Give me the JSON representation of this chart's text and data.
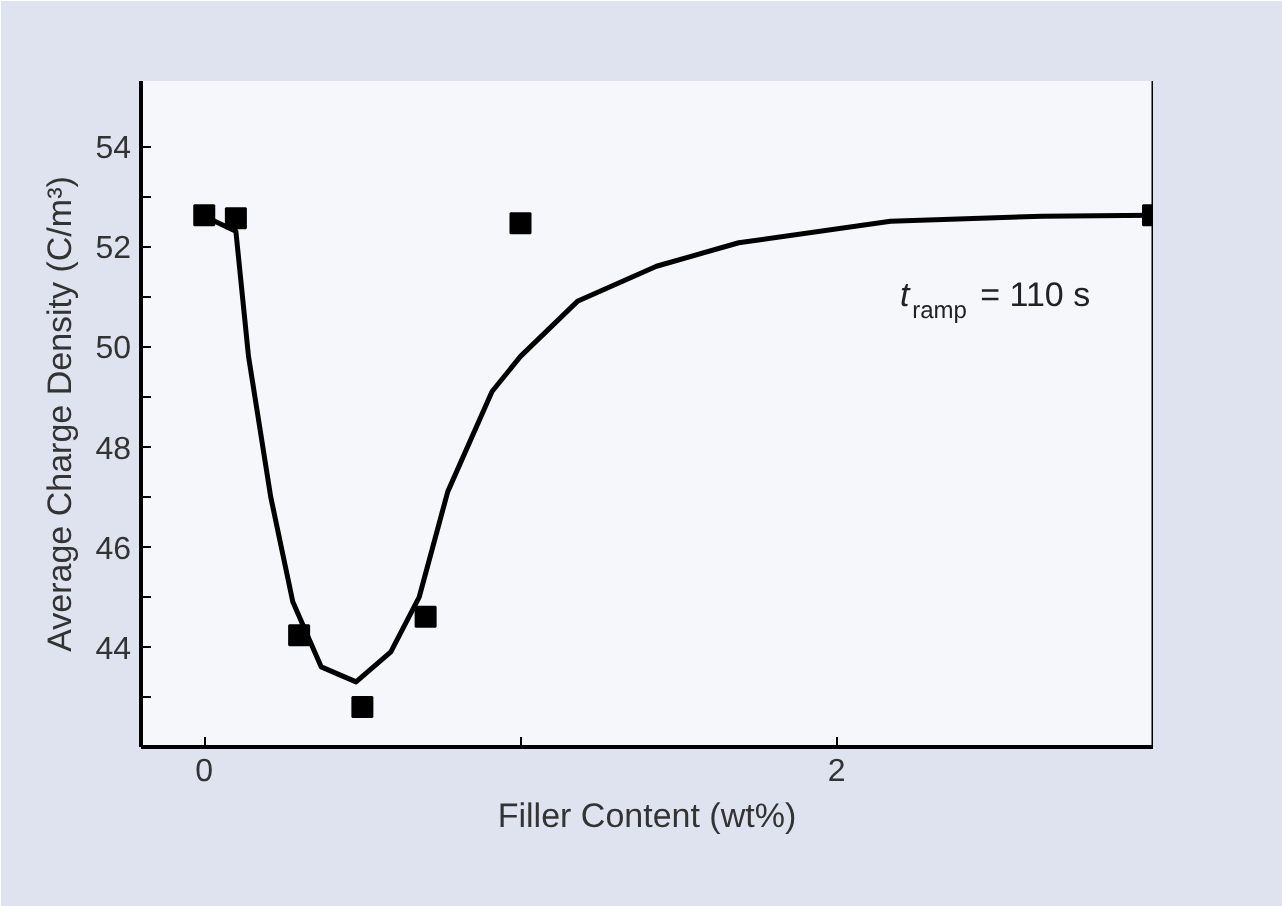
{
  "chart_data": {
    "type": "scatter",
    "xlabel": "Filler Content (wt%)",
    "ylabel": "Average Charge Density (C/m³)",
    "xlim": [
      -0.2,
      3.0
    ],
    "ylim": [
      42,
      55.3
    ],
    "xticks": [
      0,
      {
        "value": 1,
        "label": null
      },
      2
    ],
    "yticks": [
      {
        "value": 43,
        "label": null
      },
      44,
      {
        "value": 45,
        "label": null
      },
      46,
      {
        "value": 47,
        "label": null
      },
      48,
      {
        "value": 49,
        "label": null
      },
      50,
      {
        "value": 51,
        "label": null
      },
      52,
      {
        "value": 53,
        "label": null
      },
      54
    ],
    "grid": false,
    "marker": "square",
    "series": [
      {
        "color": "#000000",
        "x": [
          0,
          0.1,
          0.3,
          0.5,
          0.7,
          1.0,
          3.0
        ],
        "values": [
          52.62,
          52.56,
          44.23,
          42.8,
          44.6,
          52.46,
          52.62
        ]
      },
      {
        "type": "line",
        "color": "#000000",
        "marker": "none",
        "x": [
          0,
          0.1,
          0.14,
          0.21,
          0.28,
          0.37,
          0.48,
          0.59,
          0.68,
          0.77,
          0.91,
          1.0,
          1.18,
          1.43,
          1.69,
          2.17,
          2.65,
          3.0
        ],
        "values": [
          52.6,
          52.3,
          49.8,
          47.0,
          44.9,
          43.6,
          43.3,
          43.9,
          45.0,
          47.1,
          49.1,
          49.8,
          50.9,
          51.6,
          52.07,
          52.5,
          52.6,
          52.62
        ]
      }
    ],
    "annotations": [
      "t$_{ramp}$ = 110 s"
    ]
  }
}
